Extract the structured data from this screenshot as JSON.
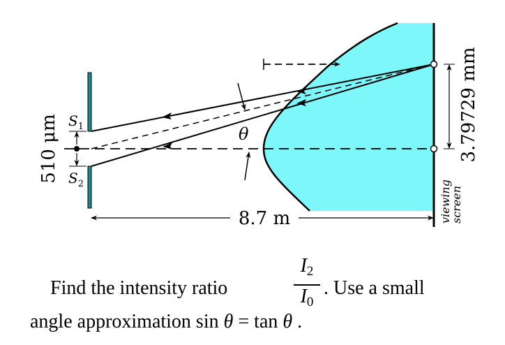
{
  "diagram": {
    "slit_separation": "510 μm",
    "source_top_label": "S1",
    "source_bottom_label": "S2",
    "angle_label": "θ",
    "distance_label": "8.7 m",
    "screen_offset_label": "3.79729 mm",
    "screen_label_line1": "viewing",
    "screen_label_line2": "screen",
    "colors": {
      "intensity_fill": "#7ef7fb",
      "slit_plate": "#1e8a8f",
      "stroke": "#000000"
    }
  },
  "problem": {
    "text_before_fraction": "Find the intensity ratio",
    "fraction_numerator": "I2",
    "fraction_denominator": "I0",
    "text_after_fraction": ".   Use a small",
    "line2": "angle approximation sin θ = tan θ ."
  }
}
